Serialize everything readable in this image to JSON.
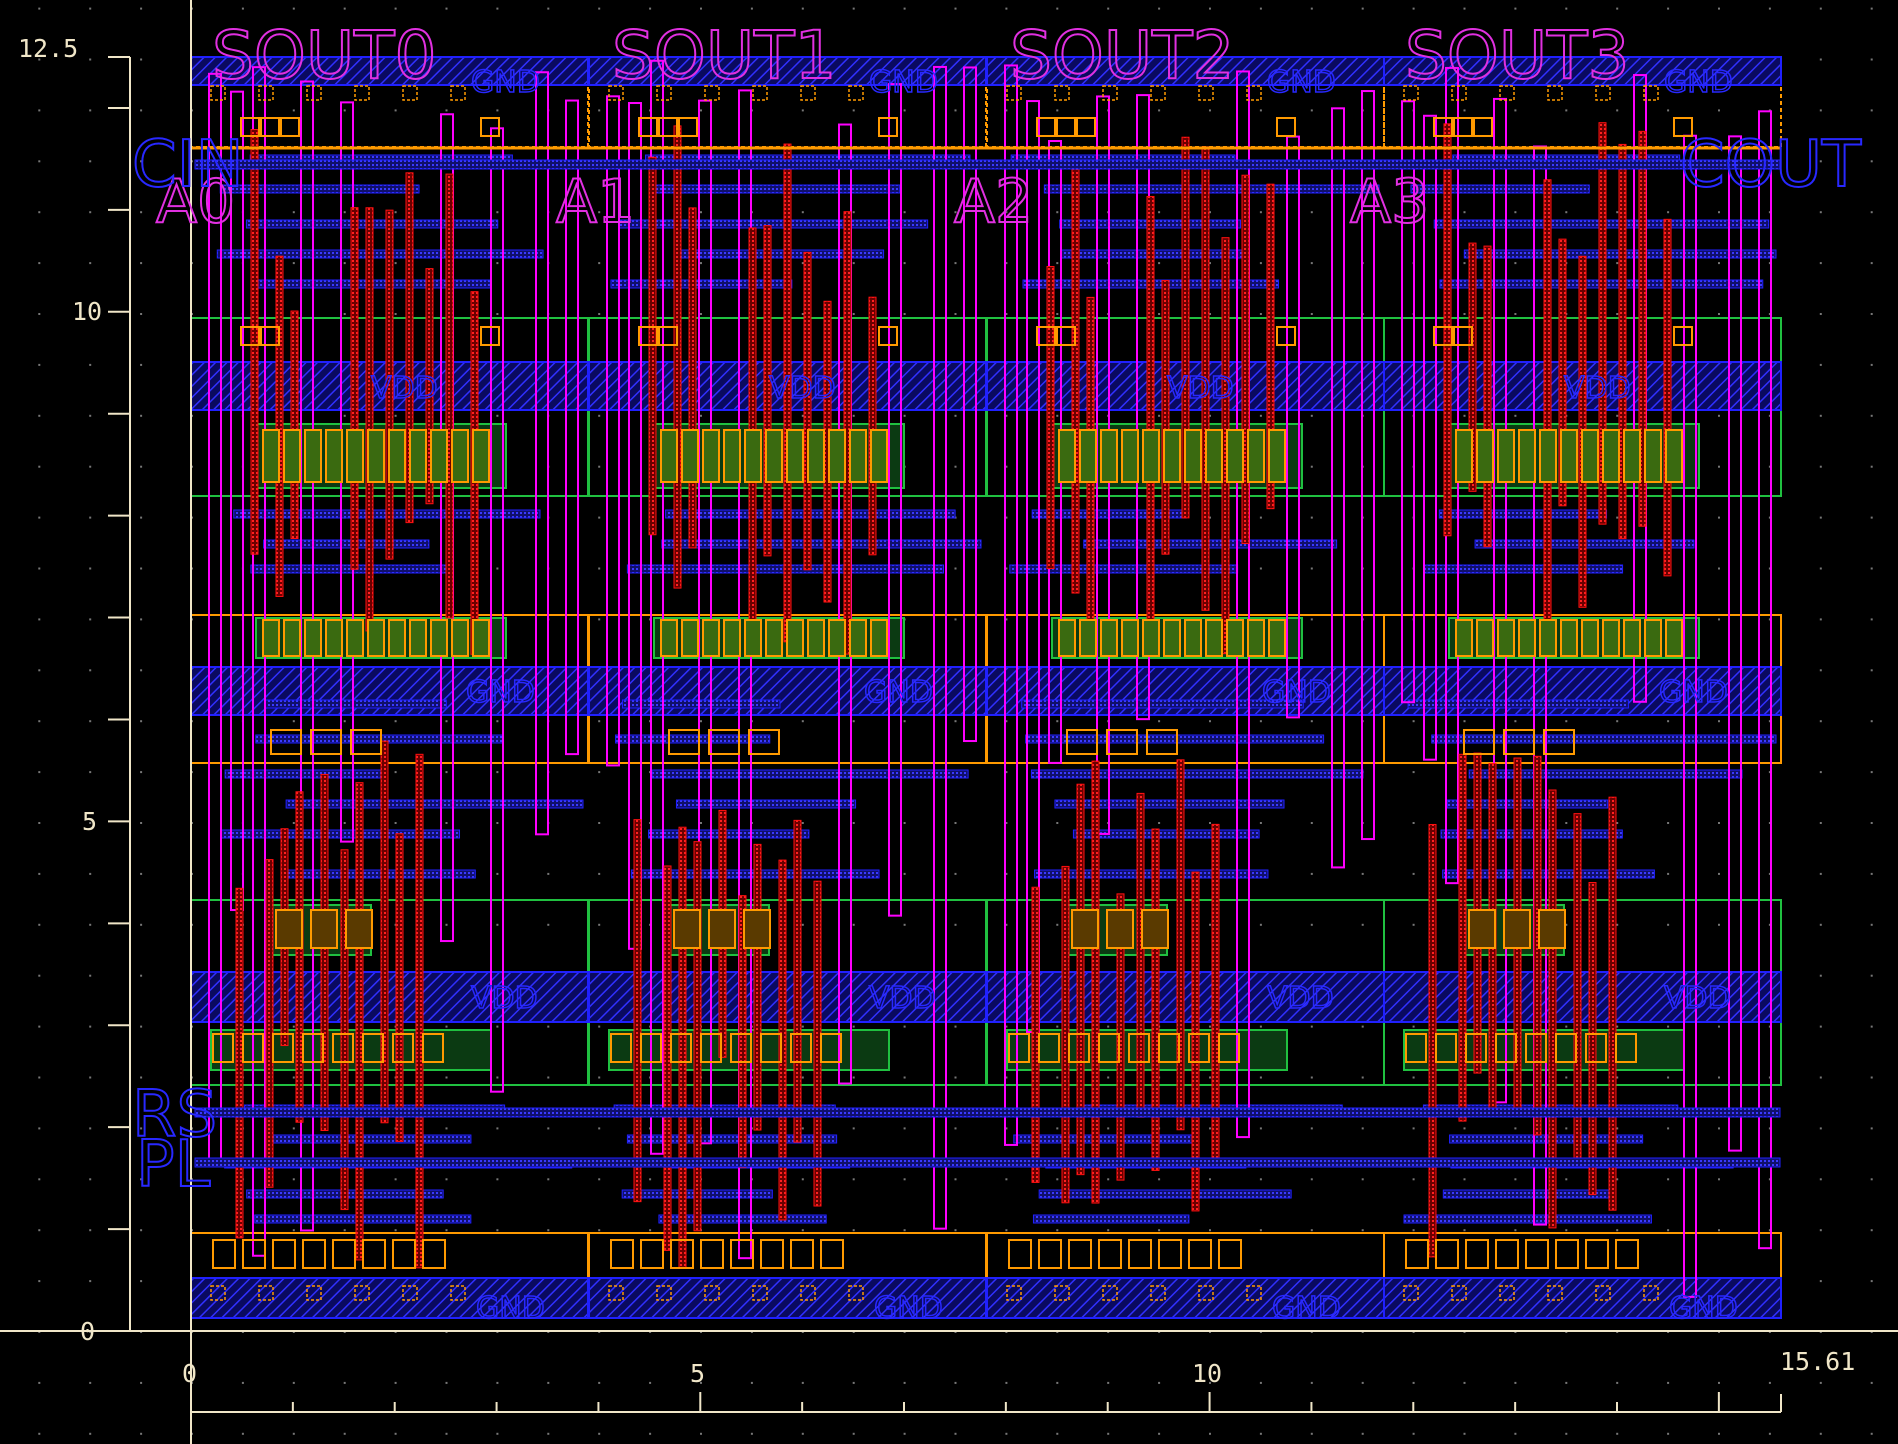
{
  "window": {
    "title": ""
  },
  "axes": {
    "y_ticks": [
      "12.5",
      "10",
      "5",
      "0"
    ],
    "x_ticks": [
      "0",
      "5",
      "10",
      "15.61"
    ],
    "x_range": [
      0,
      15.61
    ],
    "y_range": [
      0,
      12.5
    ]
  },
  "cells": [
    {
      "sout": "SOUT0",
      "in": "A0"
    },
    {
      "sout": "SOUT1",
      "in": "A1"
    },
    {
      "sout": "SOUT2",
      "in": "A2"
    },
    {
      "sout": "SOUT3",
      "in": "A3"
    }
  ],
  "pins": {
    "cin": "CIN",
    "cout": "COUT",
    "rs": "RS",
    "pl": "PL"
  },
  "rail_labels": {
    "gnd": "GND",
    "vdd": "VDD"
  },
  "colors": {
    "background": "#000000",
    "axis": "#f0e6c8",
    "metal1": "#2020ff",
    "metal2": "#ff00ff",
    "poly": "#ff1010",
    "diffusion": "#20c040",
    "contact": "#ff9a00",
    "label_metal1": "#2828ff",
    "label_metal2": "#e030e0"
  }
}
